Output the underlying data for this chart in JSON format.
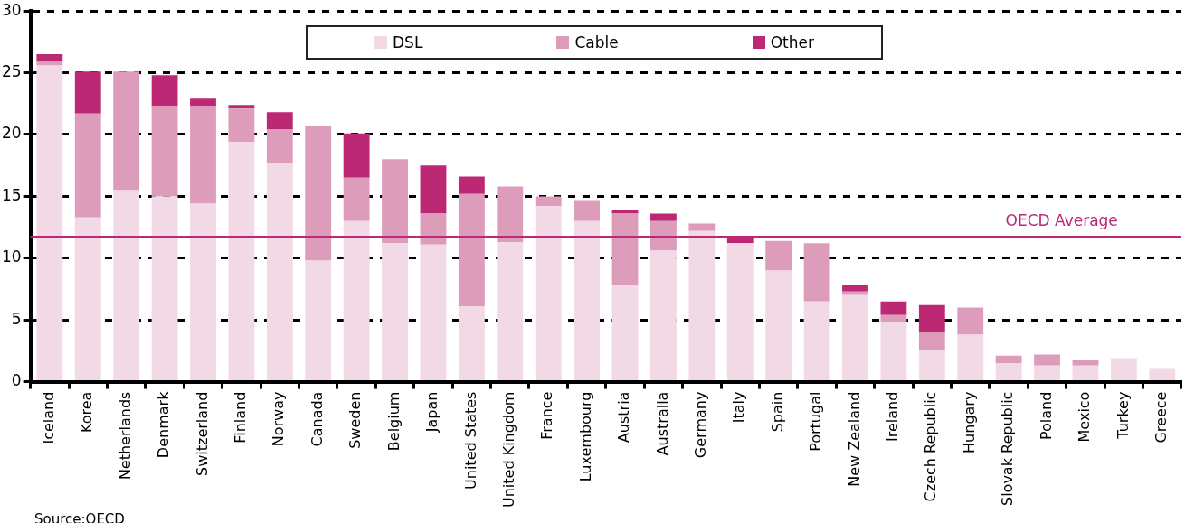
{
  "chart_data": {
    "type": "bar",
    "stacked": true,
    "categories": [
      "Iceland",
      "Korea",
      "Netherlands",
      "Denmark",
      "Switzerland",
      "Finland",
      "Norway",
      "Canada",
      "Sweden",
      "Belgium",
      "Japan",
      "United States",
      "United Kingdom",
      "France",
      "Luxembourg",
      "Austria",
      "Australia",
      "Germany",
      "Italy",
      "Spain",
      "Portugal",
      "New Zealand",
      "Ireland",
      "Czech Republic",
      "Hungary",
      "Slovak Republic",
      "Poland",
      "Mexico",
      "Turkey",
      "Greece"
    ],
    "series": [
      {
        "name": "DSL",
        "color": "#f1d9e5",
        "values": [
          25.6,
          13.3,
          15.5,
          15.0,
          14.4,
          19.4,
          17.7,
          9.8,
          13.0,
          11.2,
          11.1,
          6.1,
          11.3,
          14.2,
          13.0,
          7.8,
          10.6,
          12.2,
          11.2,
          9.0,
          6.5,
          7.0,
          4.8,
          2.6,
          3.8,
          1.5,
          1.3,
          1.3,
          1.9,
          1.1
        ]
      },
      {
        "name": "Cable",
        "color": "#dc9cba",
        "values": [
          0.4,
          8.4,
          9.6,
          7.3,
          7.9,
          2.7,
          2.7,
          10.9,
          3.5,
          6.8,
          2.5,
          9.1,
          4.5,
          0.8,
          1.7,
          5.8,
          2.4,
          0.6,
          0,
          2.4,
          4.7,
          0.3,
          0.6,
          1.4,
          2.2,
          0.6,
          0.9,
          0.5,
          0,
          0
        ]
      },
      {
        "name": "Other",
        "color": "#bd2874",
        "values": [
          0.5,
          3.4,
          0,
          2.5,
          0.6,
          0.3,
          1.4,
          0,
          3.6,
          0,
          3.9,
          1.4,
          0,
          0,
          0,
          0.3,
          0.6,
          0,
          0.5,
          0,
          0,
          0.5,
          1.1,
          2.2,
          0,
          0,
          0,
          0,
          0,
          0
        ]
      }
    ],
    "ylim": [
      0,
      30
    ],
    "yticks": [
      0,
      5,
      10,
      15,
      20,
      25,
      30
    ],
    "grid": "y",
    "legend": "top",
    "ref_lines": [
      {
        "axis": "y",
        "value": 11.7,
        "label": "OECD Average",
        "color": "#bd2874"
      }
    ],
    "annotations": [
      "Source:OECD"
    ]
  }
}
